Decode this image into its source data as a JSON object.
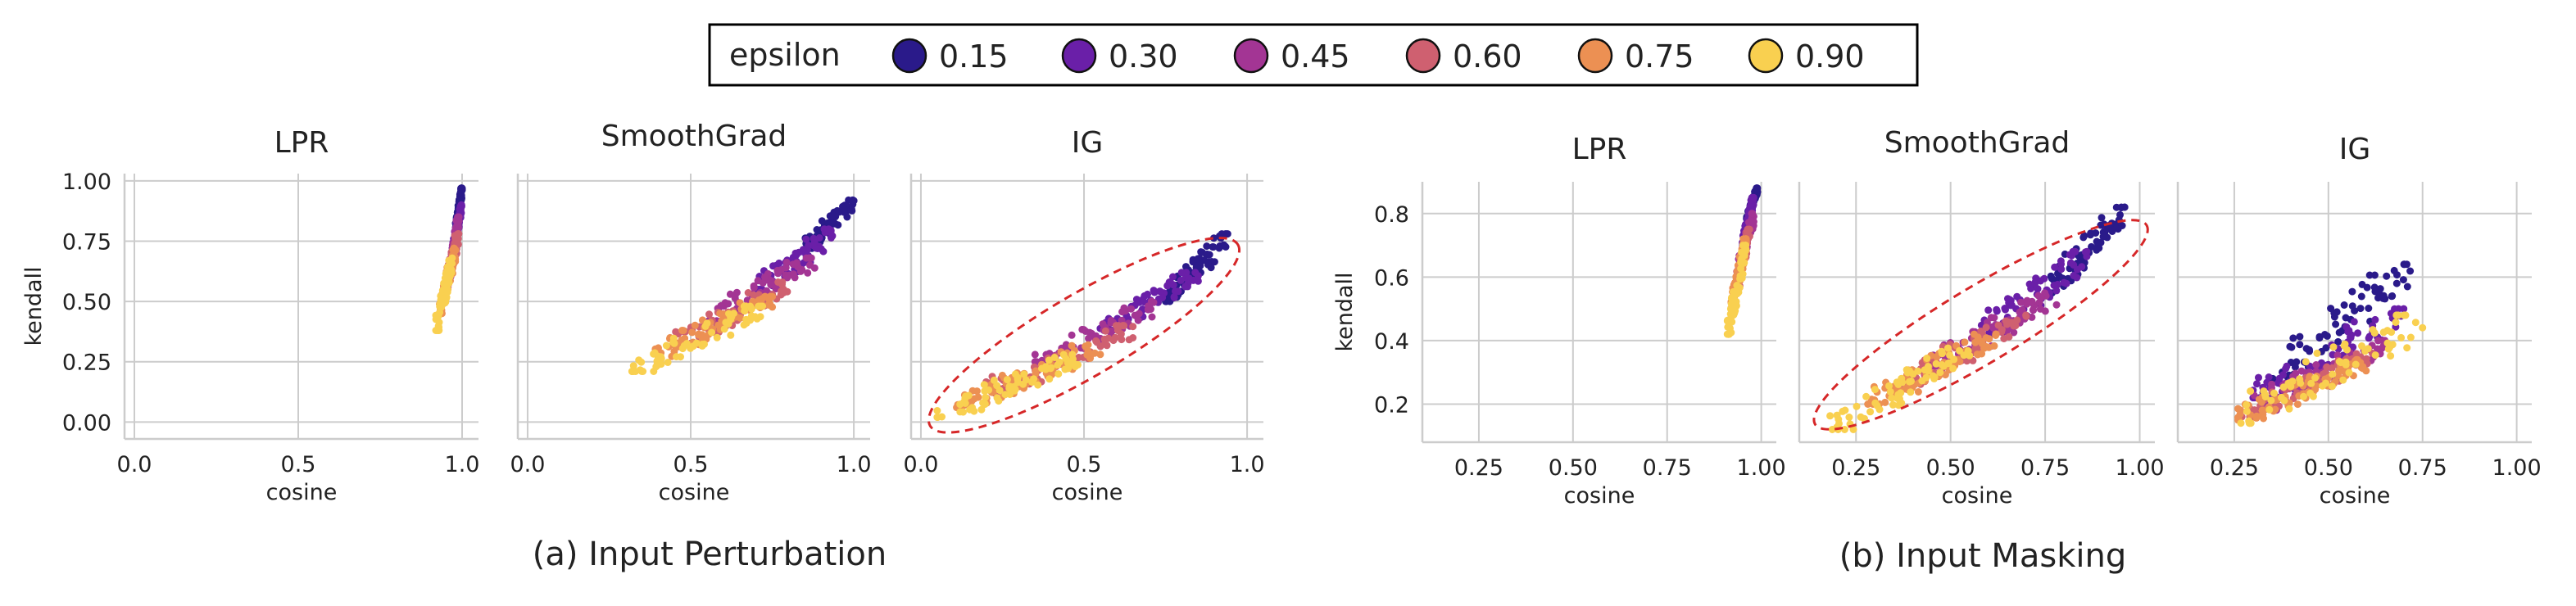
{
  "legend": {
    "title": "epsilon",
    "entries": [
      {
        "label": "0.15",
        "color": "#2a1a8a"
      },
      {
        "label": "0.30",
        "color": "#6a1fa8"
      },
      {
        "label": "0.45",
        "color": "#a33594"
      },
      {
        "label": "0.60",
        "color": "#cf6070"
      },
      {
        "label": "0.75",
        "color": "#ec9053"
      },
      {
        "label": "0.90",
        "color": "#f9d050"
      }
    ]
  },
  "captions": {
    "a": "(a) Input Perturbation",
    "b": "(b) Input Masking"
  },
  "chart_data": [
    {
      "group": "a",
      "type": "scatter",
      "title": "LPR",
      "xlabel": "cosine",
      "ylabel": "kendall",
      "xlim": [
        -0.03,
        1.05
      ],
      "ylim": [
        -0.07,
        1.03
      ],
      "xticks": [
        "0.0",
        "0.5",
        "1.0"
      ],
      "xtick_values": [
        0,
        0.5,
        1.0
      ],
      "yticks": [
        "0.00",
        "0.25",
        "0.50",
        "0.75",
        "1.00"
      ],
      "ytick_values": [
        0,
        0.25,
        0.5,
        0.75,
        1.0
      ],
      "grid": true,
      "series_ranges": [
        {
          "epsilon": "0.15",
          "x": [
            0.98,
            1.0
          ],
          "y": [
            0.8,
            0.97
          ]
        },
        {
          "epsilon": "0.30",
          "x": [
            0.97,
            1.0
          ],
          "y": [
            0.7,
            0.9
          ]
        },
        {
          "epsilon": "0.45",
          "x": [
            0.96,
            0.99
          ],
          "y": [
            0.6,
            0.85
          ]
        },
        {
          "epsilon": "0.60",
          "x": [
            0.94,
            0.99
          ],
          "y": [
            0.52,
            0.78
          ]
        },
        {
          "epsilon": "0.75",
          "x": [
            0.93,
            0.98
          ],
          "y": [
            0.45,
            0.72
          ]
        },
        {
          "epsilon": "0.90",
          "x": [
            0.92,
            0.97
          ],
          "y": [
            0.38,
            0.68
          ]
        }
      ]
    },
    {
      "group": "a",
      "type": "scatter",
      "title": "SmoothGrad",
      "xlabel": "cosine",
      "xlim": [
        -0.03,
        1.05
      ],
      "ylim": [
        -0.07,
        1.03
      ],
      "xticks": [
        "0.0",
        "0.5",
        "1.0"
      ],
      "xtick_values": [
        0,
        0.5,
        1.0
      ],
      "grid": true,
      "series_ranges": [
        {
          "epsilon": "0.15",
          "x": [
            0.85,
            1.0
          ],
          "y": [
            0.72,
            0.92
          ]
        },
        {
          "epsilon": "0.30",
          "x": [
            0.7,
            0.95
          ],
          "y": [
            0.55,
            0.8
          ]
        },
        {
          "epsilon": "0.45",
          "x": [
            0.55,
            0.88
          ],
          "y": [
            0.42,
            0.68
          ]
        },
        {
          "epsilon": "0.60",
          "x": [
            0.45,
            0.8
          ],
          "y": [
            0.32,
            0.58
          ]
        },
        {
          "epsilon": "0.75",
          "x": [
            0.38,
            0.75
          ],
          "y": [
            0.27,
            0.52
          ]
        },
        {
          "epsilon": "0.90",
          "x": [
            0.32,
            0.72
          ],
          "y": [
            0.21,
            0.48
          ]
        }
      ]
    },
    {
      "group": "a",
      "type": "scatter",
      "title": "IG",
      "xlabel": "cosine",
      "xlim": [
        -0.03,
        1.05
      ],
      "ylim": [
        -0.07,
        1.03
      ],
      "xticks": [
        "0.0",
        "0.5",
        "1.0"
      ],
      "xtick_values": [
        0,
        0.5,
        1.0
      ],
      "grid": true,
      "ellipse": {
        "cx": 0.5,
        "cy": 0.36,
        "color": "#d62728"
      },
      "series_ranges": [
        {
          "epsilon": "0.15",
          "x": [
            0.75,
            0.95
          ],
          "y": [
            0.5,
            0.78
          ]
        },
        {
          "epsilon": "0.30",
          "x": [
            0.55,
            0.85
          ],
          "y": [
            0.38,
            0.62
          ]
        },
        {
          "epsilon": "0.45",
          "x": [
            0.35,
            0.75
          ],
          "y": [
            0.25,
            0.5
          ]
        },
        {
          "epsilon": "0.60",
          "x": [
            0.2,
            0.65
          ],
          "y": [
            0.12,
            0.4
          ]
        },
        {
          "epsilon": "0.75",
          "x": [
            0.1,
            0.55
          ],
          "y": [
            0.06,
            0.32
          ]
        },
        {
          "epsilon": "0.90",
          "x": [
            0.05,
            0.5
          ],
          "y": [
            0.02,
            0.28
          ]
        }
      ]
    },
    {
      "group": "b",
      "type": "scatter",
      "title": "LPR",
      "xlabel": "cosine",
      "ylabel": "kendall",
      "xlim": [
        0.1,
        1.04
      ],
      "ylim": [
        0.08,
        0.9
      ],
      "xticks": [
        "0.25",
        "0.50",
        "0.75",
        "1.00"
      ],
      "xtick_values": [
        0.25,
        0.5,
        0.75,
        1.0
      ],
      "yticks": [
        "0.2",
        "0.4",
        "0.6",
        "0.8"
      ],
      "ytick_values": [
        0.2,
        0.4,
        0.6,
        0.8
      ],
      "grid": true,
      "series_ranges": [
        {
          "epsilon": "0.15",
          "x": [
            0.96,
            0.99
          ],
          "y": [
            0.78,
            0.88
          ]
        },
        {
          "epsilon": "0.30",
          "x": [
            0.95,
            0.98
          ],
          "y": [
            0.7,
            0.85
          ]
        },
        {
          "epsilon": "0.45",
          "x": [
            0.94,
            0.98
          ],
          "y": [
            0.62,
            0.8
          ]
        },
        {
          "epsilon": "0.60",
          "x": [
            0.93,
            0.97
          ],
          "y": [
            0.55,
            0.75
          ]
        },
        {
          "epsilon": "0.75",
          "x": [
            0.92,
            0.96
          ],
          "y": [
            0.5,
            0.72
          ]
        },
        {
          "epsilon": "0.90",
          "x": [
            0.91,
            0.96
          ],
          "y": [
            0.42,
            0.7
          ]
        }
      ]
    },
    {
      "group": "b",
      "type": "scatter",
      "title": "SmoothGrad",
      "xlabel": "cosine",
      "xlim": [
        0.1,
        1.04
      ],
      "ylim": [
        0.08,
        0.9
      ],
      "xticks": [
        "0.25",
        "0.50",
        "0.75",
        "1.00"
      ],
      "xtick_values": [
        0.25,
        0.5,
        0.75,
        1.0
      ],
      "grid": true,
      "ellipse": {
        "cx": 0.58,
        "cy": 0.45,
        "color": "#d62728"
      },
      "series_ranges": [
        {
          "epsilon": "0.15",
          "x": [
            0.75,
            0.96
          ],
          "y": [
            0.55,
            0.82
          ]
        },
        {
          "epsilon": "0.30",
          "x": [
            0.58,
            0.86
          ],
          "y": [
            0.42,
            0.68
          ]
        },
        {
          "epsilon": "0.45",
          "x": [
            0.45,
            0.78
          ],
          "y": [
            0.32,
            0.55
          ]
        },
        {
          "epsilon": "0.60",
          "x": [
            0.35,
            0.7
          ],
          "y": [
            0.25,
            0.48
          ]
        },
        {
          "epsilon": "0.75",
          "x": [
            0.28,
            0.62
          ],
          "y": [
            0.2,
            0.42
          ]
        },
        {
          "epsilon": "0.90",
          "x": [
            0.18,
            0.55
          ],
          "y": [
            0.12,
            0.38
          ]
        }
      ]
    },
    {
      "group": "b",
      "type": "scatter",
      "title": "IG",
      "xlabel": "cosine",
      "xlim": [
        0.1,
        1.04
      ],
      "ylim": [
        0.08,
        0.9
      ],
      "xticks": [
        "0.25",
        "0.50",
        "0.75",
        "1.00"
      ],
      "xtick_values": [
        0.25,
        0.5,
        0.75,
        1.0
      ],
      "grid": true,
      "series_ranges": [
        {
          "epsilon": "0.15",
          "x": [
            0.35,
            0.72
          ],
          "y": [
            0.28,
            0.64
          ]
        },
        {
          "epsilon": "0.30",
          "x": [
            0.3,
            0.7
          ],
          "y": [
            0.22,
            0.5
          ]
        },
        {
          "epsilon": "0.45",
          "x": [
            0.28,
            0.65
          ],
          "y": [
            0.18,
            0.4
          ]
        },
        {
          "epsilon": "0.60",
          "x": [
            0.27,
            0.62
          ],
          "y": [
            0.16,
            0.36
          ]
        },
        {
          "epsilon": "0.75",
          "x": [
            0.26,
            0.6
          ],
          "y": [
            0.15,
            0.34
          ]
        },
        {
          "epsilon": "0.90",
          "x": [
            0.25,
            0.75
          ],
          "y": [
            0.14,
            0.48
          ]
        }
      ]
    }
  ]
}
